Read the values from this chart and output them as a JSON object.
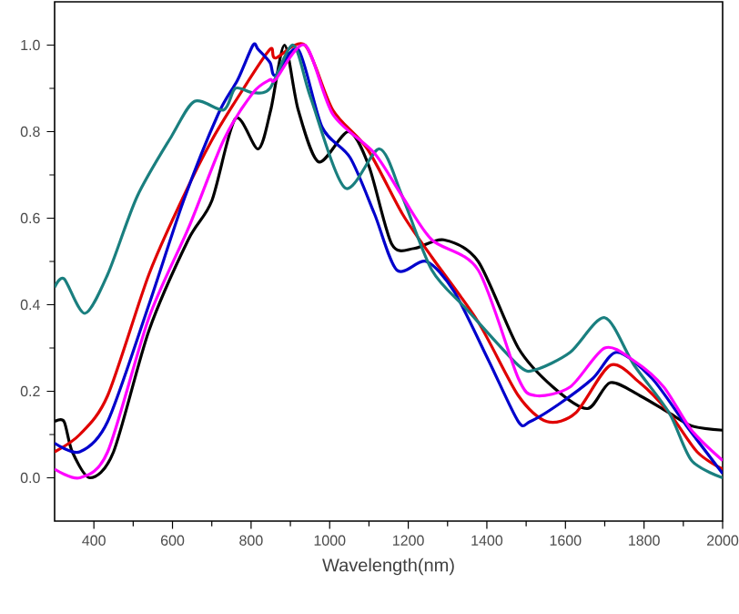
{
  "chart_data": {
    "type": "line",
    "xlabel": "Wavelength(nm)",
    "xlim": [
      300,
      2000
    ],
    "ylim": [
      -0.1,
      1.1
    ],
    "xticks": [
      400,
      600,
      800,
      1000,
      1200,
      1400,
      1600,
      1800,
      2000
    ],
    "yticks": [
      {
        "value": 0,
        "label": "0.0"
      },
      0.2,
      0.4,
      0.6,
      0.8,
      {
        "value": 1,
        "label": "1.0"
      }
    ],
    "line_style": "solid",
    "series": [
      {
        "color": "#000000",
        "x": [
          300,
          324,
          345,
          390,
          450,
          540,
          640,
          700,
          760,
          818,
          850,
          885,
          920,
          972,
          1048,
          1100,
          1158,
          1215,
          1290,
          1378,
          1480,
          1568,
          1656,
          1714,
          1789,
          1864,
          1921,
          2000
        ],
        "values": [
          0.13,
          0.13,
          0.06,
          0.0,
          0.06,
          0.34,
          0.55,
          0.64,
          0.83,
          0.76,
          0.85,
          1.0,
          0.85,
          0.73,
          0.8,
          0.72,
          0.54,
          0.53,
          0.55,
          0.5,
          0.3,
          0.21,
          0.16,
          0.22,
          0.19,
          0.15,
          0.12,
          0.11
        ]
      },
      {
        "color": "#e00000",
        "x": [
          300,
          364,
          435,
          540,
          628,
          700,
          774,
          848,
          862,
          937,
          1008,
          1096,
          1185,
          1260,
          1378,
          1480,
          1553,
          1626,
          1714,
          1789,
          1864,
          1935,
          2000
        ],
        "values": [
          0.06,
          0.1,
          0.19,
          0.47,
          0.65,
          0.78,
          0.89,
          0.99,
          0.97,
          1.0,
          0.85,
          0.76,
          0.61,
          0.51,
          0.36,
          0.19,
          0.13,
          0.15,
          0.26,
          0.22,
          0.15,
          0.06,
          0.02
        ]
      },
      {
        "color": "#0000cc",
        "x": [
          300,
          364,
          435,
          540,
          628,
          716,
          766,
          805,
          818,
          848,
          862,
          920,
          981,
          1052,
          1114,
          1171,
          1246,
          1317,
          1405,
          1480,
          1510,
          1583,
          1670,
          1731,
          1820,
          1908,
          2000
        ],
        "values": [
          0.08,
          0.06,
          0.13,
          0.4,
          0.64,
          0.84,
          0.92,
          1.0,
          0.99,
          0.96,
          0.93,
          0.99,
          0.81,
          0.74,
          0.61,
          0.48,
          0.5,
          0.43,
          0.27,
          0.13,
          0.13,
          0.17,
          0.23,
          0.29,
          0.23,
          0.12,
          0.01
        ]
      },
      {
        "color": "#1a7f7f",
        "x": [
          300,
          324,
          377,
          435,
          510,
          598,
          656,
          730,
          760,
          805,
          848,
          907,
          951,
          1039,
          1127,
          1185,
          1260,
          1348,
          1480,
          1524,
          1612,
          1700,
          1775,
          1864,
          1921,
          2000
        ],
        "values": [
          0.44,
          0.46,
          0.38,
          0.47,
          0.65,
          0.79,
          0.87,
          0.85,
          0.9,
          0.89,
          0.9,
          1.0,
          0.88,
          0.67,
          0.76,
          0.65,
          0.48,
          0.39,
          0.26,
          0.25,
          0.29,
          0.37,
          0.26,
          0.15,
          0.04,
          0.0
        ]
      },
      {
        "color": "#ff00ff",
        "x": [
          300,
          364,
          435,
          540,
          642,
          730,
          805,
          848,
          862,
          937,
          1008,
          1114,
          1185,
          1260,
          1378,
          1480,
          1524,
          1612,
          1700,
          1775,
          1850,
          1921,
          2000
        ],
        "values": [
          0.02,
          0.0,
          0.06,
          0.37,
          0.58,
          0.78,
          0.89,
          0.92,
          0.92,
          1.0,
          0.84,
          0.75,
          0.65,
          0.55,
          0.48,
          0.23,
          0.19,
          0.21,
          0.3,
          0.27,
          0.21,
          0.11,
          0.04
        ]
      }
    ]
  }
}
